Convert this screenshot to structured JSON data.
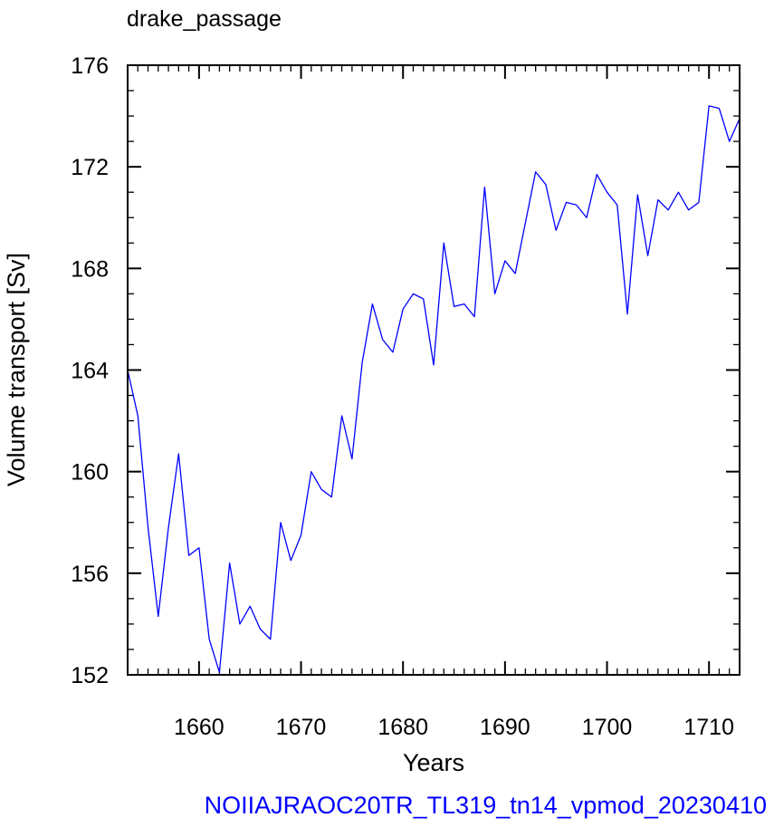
{
  "chart_data": {
    "type": "line",
    "title": "drake_passage",
    "xlabel": "Years",
    "ylabel": "Volume transport [Sv]",
    "footer": "NOIIAJRAOC20TR_TL319_tn14_vpmod_20230410",
    "xlim": [
      1653,
      1713
    ],
    "ylim": [
      152,
      176
    ],
    "xticks": [
      "1660",
      "1670",
      "1680",
      "1690",
      "1700",
      "1710"
    ],
    "yticks": [
      "152",
      "156",
      "160",
      "164",
      "168",
      "172",
      "176"
    ],
    "grid": false,
    "series": [
      {
        "color": "#0000ff",
        "x": [
          1653,
          1654,
          1655,
          1656,
          1657,
          1658,
          1659,
          1660,
          1661,
          1662,
          1663,
          1664,
          1665,
          1666,
          1667,
          1668,
          1669,
          1670,
          1671,
          1672,
          1673,
          1674,
          1675,
          1676,
          1677,
          1678,
          1679,
          1680,
          1681,
          1682,
          1683,
          1684,
          1685,
          1686,
          1687,
          1688,
          1689,
          1690,
          1691,
          1692,
          1693,
          1694,
          1695,
          1696,
          1697,
          1698,
          1699,
          1700,
          1701,
          1702,
          1703,
          1704,
          1705,
          1706,
          1707,
          1708,
          1709,
          1710,
          1711,
          1712,
          1713
        ],
        "y": [
          164.0,
          162.2,
          157.8,
          154.3,
          157.8,
          160.7,
          156.7,
          157.0,
          153.4,
          152.1,
          156.4,
          154.0,
          154.7,
          153.8,
          153.4,
          158.0,
          156.5,
          157.5,
          160.0,
          159.3,
          159.0,
          162.2,
          160.5,
          164.3,
          166.6,
          165.2,
          164.7,
          166.4,
          167.0,
          166.8,
          164.2,
          169.0,
          166.5,
          166.6,
          166.1,
          171.2,
          167.0,
          168.3,
          167.8,
          169.8,
          171.8,
          171.3,
          169.5,
          170.6,
          170.5,
          170.0,
          171.7,
          171.0,
          170.5,
          166.2,
          170.9,
          168.5,
          170.7,
          170.3,
          171.0,
          170.3,
          170.6,
          174.4,
          174.3,
          173.0,
          173.9
        ]
      }
    ]
  }
}
